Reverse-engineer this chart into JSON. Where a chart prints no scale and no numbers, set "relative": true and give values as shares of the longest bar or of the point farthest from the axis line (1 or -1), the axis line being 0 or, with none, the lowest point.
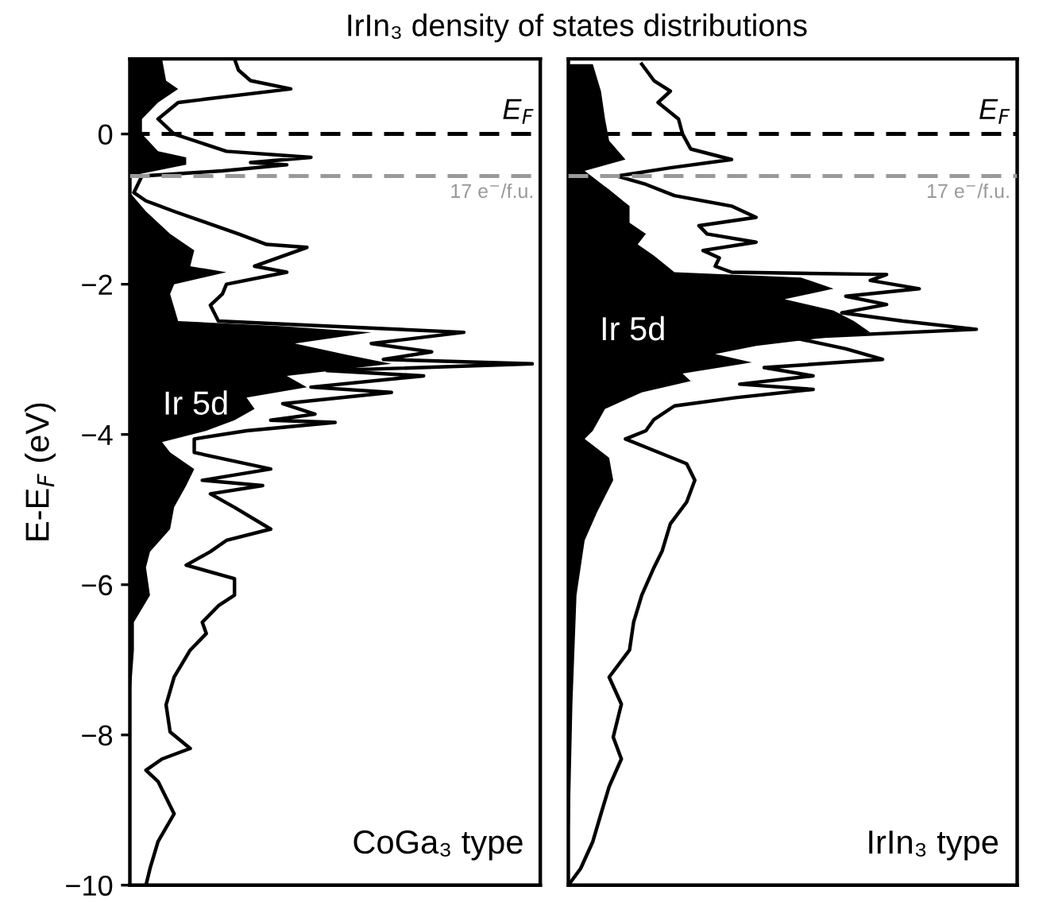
{
  "chart_data": [
    {
      "type": "area",
      "orientation": "horizontal",
      "relative": true,
      "title": "IrIn₃ density of states distributions",
      "ylabel": "E-E$_{F}$ (eV)",
      "ylim": [
        -10,
        1
      ],
      "yticks": [
        -10,
        -8,
        -6,
        -4,
        -2,
        0
      ],
      "tick_labels": "y",
      "annotations": [
        "Ir 5d",
        "CoGa₃ type"
      ],
      "ref_lines": [
        {
          "axis": "y",
          "value": 0,
          "label": "E$_{F}$",
          "color": "#000000",
          "line_style": "dashed"
        },
        {
          "axis": "y",
          "value": -0.56,
          "label": "17 e$^{−}$/f.u.",
          "color": "#999999",
          "line_style": "dashed"
        }
      ],
      "series": [
        {
          "color": "#000000",
          "x": [
            1.0,
            0.71,
            0.6,
            0.42,
            0.2,
            0.0,
            -0.23,
            -0.31,
            -0.41,
            -0.56,
            -0.78,
            -1.03,
            -1.33,
            -1.55,
            -1.76,
            -1.84,
            -2.0,
            -2.13,
            -2.49,
            -2.56,
            -2.64,
            -2.79,
            -2.94,
            -3.06,
            -3.22,
            -3.37,
            -3.51,
            -3.66,
            -3.81,
            -3.95,
            -4.1,
            -4.24,
            -4.46,
            -4.68,
            -4.97,
            -5.26,
            -5.56,
            -5.77,
            -6.14,
            -6.5,
            -6.87,
            -7.6,
            -10
          ],
          "values": [
            0.08,
            0.09,
            0.12,
            0.07,
            0.03,
            0.03,
            0.07,
            0.14,
            0.14,
            0.0,
            0.0,
            0.04,
            0.1,
            0.16,
            0.15,
            0.24,
            0.11,
            0.1,
            0.12,
            0.38,
            0.6,
            0.41,
            0.54,
            0.65,
            0.39,
            0.44,
            0.29,
            0.31,
            0.26,
            0.19,
            0.08,
            0.1,
            0.16,
            0.14,
            0.11,
            0.1,
            0.05,
            0.04,
            0.05,
            0.01,
            0.01,
            0.0,
            0.0
          ]
        },
        {
          "type": "line",
          "color": "#000000",
          "x": [
            1.0,
            0.85,
            0.71,
            0.6,
            0.42,
            0.2,
            0.0,
            -0.23,
            -0.31,
            -0.38,
            -0.41,
            -0.49,
            -0.56,
            -0.78,
            -0.89,
            -1.03,
            -1.33,
            -1.47,
            -1.51,
            -1.76,
            -1.84,
            -2.0,
            -2.13,
            -2.28,
            -2.49,
            -2.53,
            -2.64,
            -2.79,
            -2.9,
            -3.0,
            -3.06,
            -3.15,
            -3.22,
            -3.37,
            -3.44,
            -3.59,
            -3.73,
            -3.81,
            -3.84,
            -3.95,
            -4.06,
            -4.24,
            -4.46,
            -4.61,
            -4.68,
            -4.79,
            -4.97,
            -5.26,
            -5.41,
            -5.56,
            -5.74,
            -5.92,
            -6.14,
            -6.28,
            -6.5,
            -6.65,
            -6.87,
            -7.23,
            -7.6,
            -7.96,
            -8.18,
            -8.32,
            -8.47,
            -8.62,
            -9.05,
            -9.42,
            -9.78,
            -10
          ],
          "values": [
            0.26,
            0.27,
            0.3,
            0.4,
            0.12,
            0.07,
            0.11,
            0.24,
            0.45,
            0.3,
            0.39,
            0.23,
            0.03,
            0.01,
            0.04,
            0.11,
            0.27,
            0.34,
            0.44,
            0.31,
            0.39,
            0.24,
            0.23,
            0.2,
            0.22,
            0.38,
            0.83,
            0.6,
            0.75,
            0.63,
            1.0,
            0.49,
            0.73,
            0.45,
            0.65,
            0.38,
            0.46,
            0.35,
            0.51,
            0.29,
            0.16,
            0.16,
            0.35,
            0.18,
            0.33,
            0.2,
            0.26,
            0.35,
            0.24,
            0.2,
            0.14,
            0.26,
            0.26,
            0.22,
            0.18,
            0.19,
            0.15,
            0.11,
            0.09,
            0.1,
            0.15,
            0.08,
            0.04,
            0.07,
            0.11,
            0.07,
            0.05,
            0.04
          ]
        }
      ]
    },
    {
      "type": "area",
      "orientation": "horizontal",
      "relative": true,
      "ylim": [
        -10,
        1
      ],
      "yticks": [
        -10,
        -8,
        -6,
        -4,
        -2,
        0
      ],
      "tick_labels": false,
      "annotations": [
        "Ir 5d",
        "IrIn₃ type"
      ],
      "ref_lines": [
        {
          "axis": "y",
          "value": 0,
          "label": "E$_{F}$",
          "color": "#000000",
          "line_style": "dashed"
        },
        {
          "axis": "y",
          "value": -0.56,
          "label": "17 e$^{−}$/f.u.",
          "color": "#999999",
          "line_style": "dashed"
        }
      ],
      "series": [
        {
          "color": "#000000",
          "x": [
            0.93,
            0.57,
            0.2,
            -0.09,
            -0.34,
            -0.49,
            -0.74,
            -0.96,
            -1.18,
            -1.33,
            -1.47,
            -1.62,
            -1.84,
            -1.91,
            -2.06,
            -2.2,
            -2.35,
            -2.49,
            -2.64,
            -2.82,
            -2.93,
            -3.04,
            -3.19,
            -3.29,
            -3.44,
            -3.66,
            -3.95,
            -4.06,
            -4.31,
            -4.61,
            -5.04,
            -5.41,
            -6.14,
            -7.59,
            -10
          ],
          "values": [
            0.06,
            0.08,
            0.09,
            0.1,
            0.14,
            0.04,
            0.1,
            0.15,
            0.15,
            0.19,
            0.17,
            0.21,
            0.26,
            0.57,
            0.65,
            0.53,
            0.65,
            0.7,
            0.74,
            0.46,
            0.36,
            0.45,
            0.28,
            0.3,
            0.18,
            0.09,
            0.06,
            0.04,
            0.1,
            0.11,
            0.07,
            0.04,
            0.02,
            0.01,
            0.0
          ]
        },
        {
          "type": "line",
          "color": "#000000",
          "x": [
            0.93,
            0.71,
            0.57,
            0.42,
            0.2,
            0.0,
            -0.2,
            -0.34,
            -0.45,
            -0.56,
            -0.67,
            -0.82,
            -0.96,
            -1.11,
            -1.22,
            -1.33,
            -1.44,
            -1.55,
            -1.65,
            -1.76,
            -1.84,
            -1.87,
            -1.95,
            -2.06,
            -2.16,
            -2.27,
            -2.38,
            -2.49,
            -2.6,
            -2.71,
            -2.86,
            -3.0,
            -3.11,
            -3.22,
            -3.33,
            -3.4,
            -3.51,
            -3.62,
            -3.8,
            -3.95,
            -4.06,
            -4.17,
            -4.39,
            -4.61,
            -4.9,
            -5.19,
            -5.55,
            -5.77,
            -6.14,
            -6.5,
            -6.87,
            -7.23,
            -7.59,
            -8.03,
            -8.32,
            -8.69,
            -9.05,
            -9.42,
            -9.78,
            -10
          ],
          "values": [
            0.18,
            0.21,
            0.25,
            0.22,
            0.27,
            0.28,
            0.3,
            0.4,
            0.25,
            0.12,
            0.19,
            0.26,
            0.4,
            0.46,
            0.32,
            0.34,
            0.46,
            0.33,
            0.37,
            0.36,
            0.4,
            0.78,
            0.74,
            0.86,
            0.68,
            0.78,
            0.67,
            0.82,
            1.0,
            0.55,
            0.68,
            0.77,
            0.48,
            0.6,
            0.42,
            0.6,
            0.41,
            0.26,
            0.21,
            0.19,
            0.14,
            0.19,
            0.29,
            0.31,
            0.29,
            0.25,
            0.23,
            0.21,
            0.18,
            0.16,
            0.15,
            0.1,
            0.13,
            0.11,
            0.13,
            0.1,
            0.08,
            0.06,
            0.03,
            0.0
          ]
        }
      ]
    }
  ]
}
